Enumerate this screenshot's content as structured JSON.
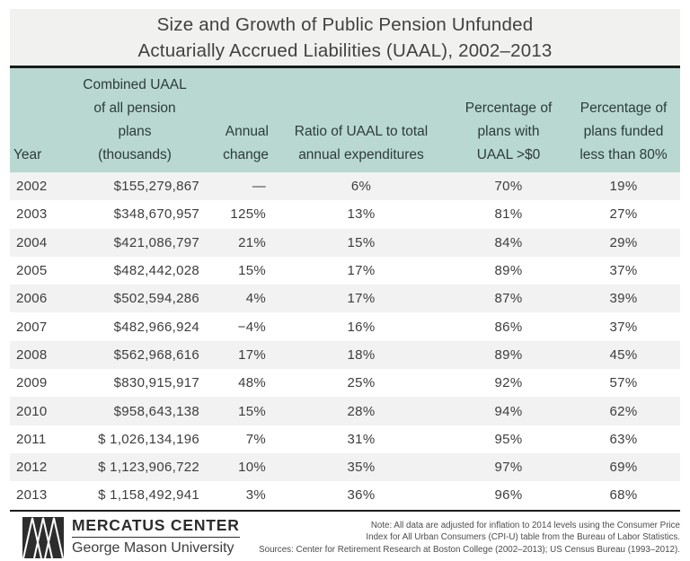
{
  "chart_data": {
    "type": "table",
    "title": "Size and Growth of Public Pension Unfunded\nActuarially Accrued Liabilities (UAAL), 2002–2013",
    "columns": [
      "Year",
      "Combined UAAL\nof all pension\nplans\n(thousands)",
      "Annual\nchange",
      "Ratio of UAAL to total\nannual expenditures",
      "Percentage of\nplans with\nUAAL >$0",
      "Percentage of\nplans funded\nless than 80%"
    ],
    "rows": [
      [
        "2002",
        "$155,279,867",
        "—",
        "6%",
        "70%",
        "19%"
      ],
      [
        "2003",
        "$348,670,957",
        "125%",
        "13%",
        "81%",
        "27%"
      ],
      [
        "2004",
        "$421,086,797",
        "21%",
        "15%",
        "84%",
        "29%"
      ],
      [
        "2005",
        "$482,442,028",
        "15%",
        "17%",
        "89%",
        "37%"
      ],
      [
        "2006",
        "$502,594,286",
        "4%",
        "17%",
        "87%",
        "39%"
      ],
      [
        "2007",
        "$482,966,924",
        "−4%",
        "16%",
        "86%",
        "37%"
      ],
      [
        "2008",
        "$562,968,616",
        "17%",
        "18%",
        "89%",
        "45%"
      ],
      [
        "2009",
        "$830,915,917",
        "48%",
        "25%",
        "92%",
        "57%"
      ],
      [
        "2010",
        "$958,643,138",
        "15%",
        "28%",
        "94%",
        "62%"
      ],
      [
        "2011",
        "$ 1,026,134,196",
        "7%",
        "31%",
        "95%",
        "63%"
      ],
      [
        "2012",
        "$ 1,123,906,722",
        "10%",
        "35%",
        "97%",
        "69%"
      ],
      [
        "2013",
        "$ 1,158,492,941",
        "3%",
        "36%",
        "96%",
        "68%"
      ]
    ]
  },
  "footer": {
    "logo_org": "MERCATUS CENTER",
    "logo_university": "George Mason University",
    "note": "Note: All data are adjusted for inflation to 2014 levels using the Consumer Price\nIndex for All Urban Consumers (CPI-U) table from the Bureau of Labor Statistics.\nSources: Center for Retirement Research at Boston College (2002–2013); US Census Bureau (1993–2012)."
  },
  "colors": {
    "header_bg": "#b9d8d2",
    "title_bg": "#f1f1ef",
    "row_alt_bg": "#f2f2f2",
    "rule": "#1b1b1b",
    "text": "#3d3d3d"
  }
}
